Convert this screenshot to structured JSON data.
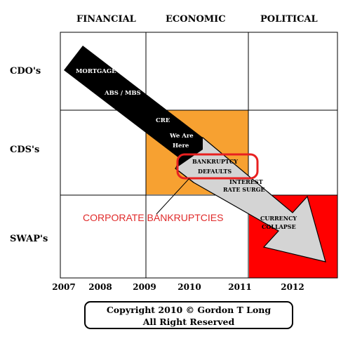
{
  "columns": [
    "FINANCIAL",
    "ECONOMIC",
    "POLITICAL"
  ],
  "rows": [
    "CDO's",
    "CDS's",
    "SWAP's"
  ],
  "years": [
    "2007",
    "2008",
    "2009",
    "2010",
    "2011",
    "2012"
  ],
  "arrow_labels": {
    "mortgage": "MORTGAGE",
    "abs_mbs": "ABS / MBS",
    "cre": "CRE",
    "we_are": "We Are",
    "here": "Here",
    "bankruptcy": "BANKRUPTCY",
    "defaults": "DEFAULTS",
    "interest": "INTEREST",
    "rate_surge": "RATE SURGE",
    "currency": "CURRENCY",
    "collapse": "COLLAPSE"
  },
  "callout": "CORPORATE BANKRUPTCIES",
  "copyright": {
    "line1": "Copyright 2010 © Gordon T Long",
    "line2": "All Right Reserved"
  },
  "colors": {
    "orange": "#f7a131",
    "red": "#ff0000",
    "arrow_dark": "#000000",
    "arrow_light": "#d4d4d4",
    "callout_red": "#e02a2a"
  }
}
